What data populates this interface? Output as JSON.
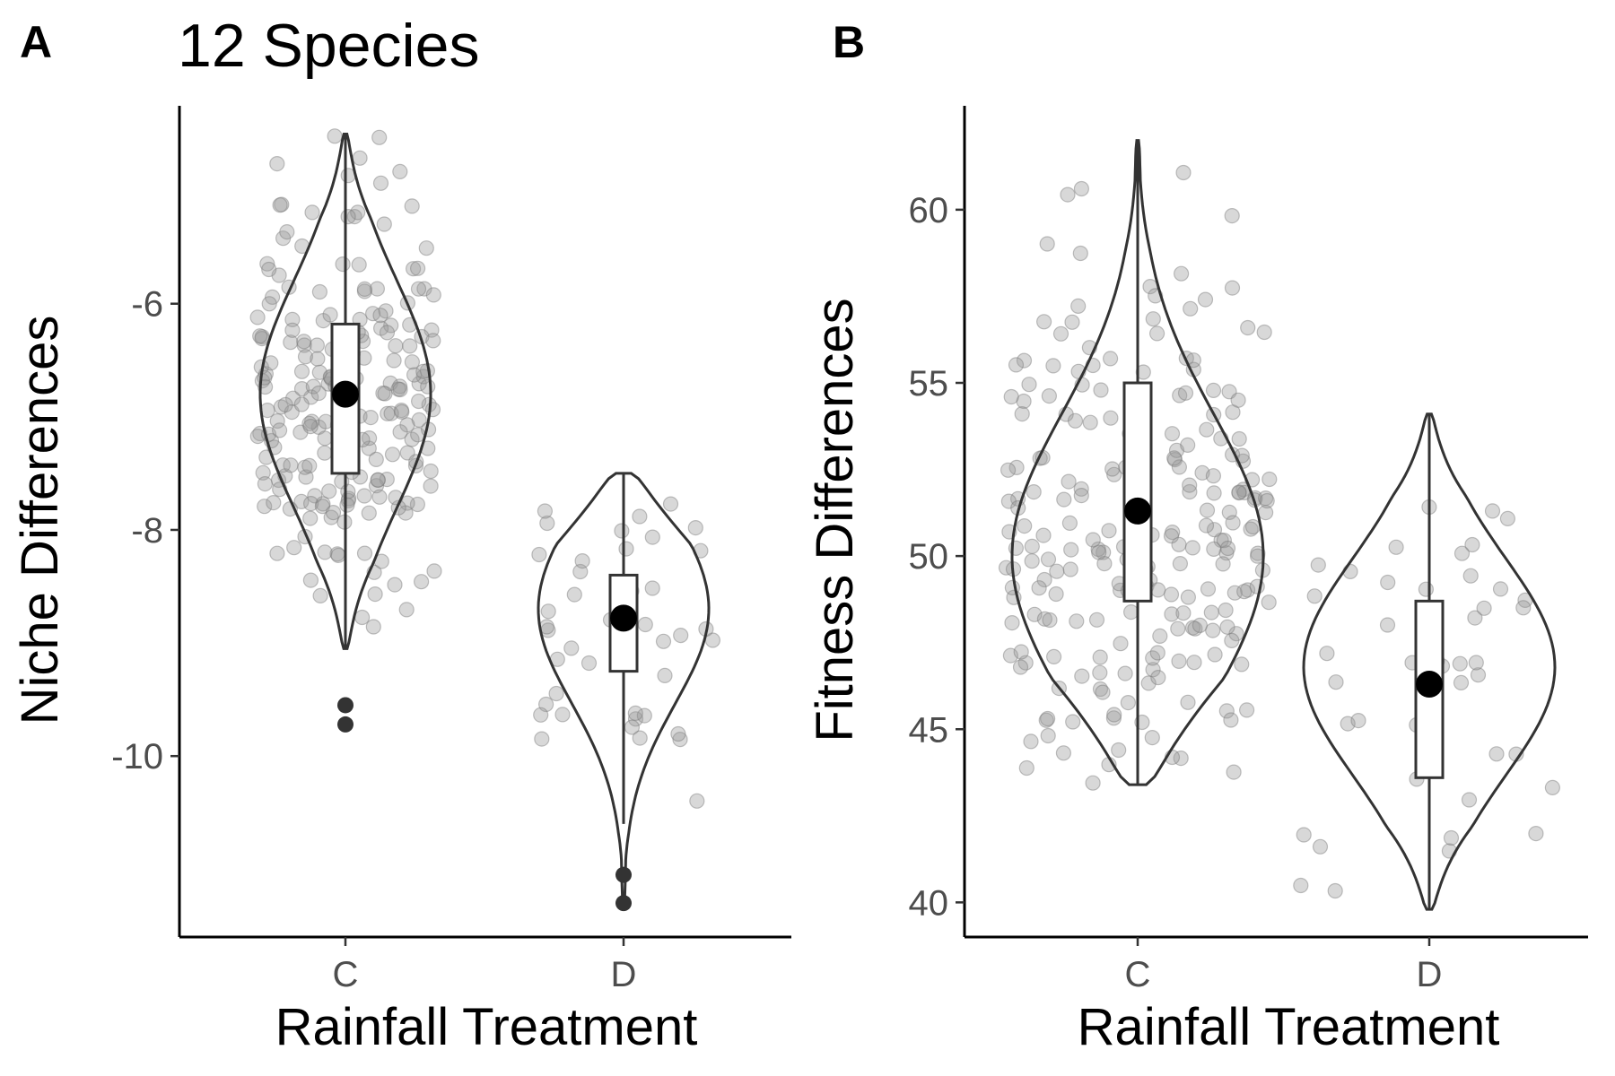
{
  "figure": {
    "panels": [
      {
        "label": "A"
      },
      {
        "label": "B"
      }
    ]
  },
  "chart_data": [
    {
      "type": "violin",
      "panel_label": "A",
      "title": "12 Species",
      "xlabel": "Rainfall Treatment",
      "ylabel": "Niche Differences",
      "categories": [
        "C",
        "D"
      ],
      "ylim": [
        -11.6,
        -4.25
      ],
      "yticks": [
        -10,
        -8,
        -6
      ],
      "ytick_labels": [
        "-10",
        "-8",
        "-6"
      ],
      "grid": false,
      "groups": [
        {
          "category": "C",
          "violin_range": [
            -9.05,
            -4.5
          ],
          "box": {
            "q1": -7.5,
            "median": -6.9,
            "q3": -6.18,
            "whisker_low": -9.05,
            "whisker_high": -4.5
          },
          "mean": -6.8,
          "outliers": [
            -9.55,
            -9.72
          ],
          "peak_density_y": -6.8,
          "seed": 11,
          "n": 220
        },
        {
          "category": "D",
          "violin_range": [
            -11.3,
            -7.5
          ],
          "box": {
            "q1": -9.25,
            "median": -8.8,
            "q3": -8.4,
            "whisker_low": -10.6,
            "whisker_high": -7.5
          },
          "mean": -8.78,
          "outliers": [
            -11.05,
            -11.3
          ],
          "peak_density_y": -8.7,
          "seed": 23,
          "n": 42
        }
      ]
    },
    {
      "type": "violin",
      "panel_label": "B",
      "title": "",
      "xlabel": "Rainfall Treatment",
      "ylabel": "Fitness Differences",
      "categories": [
        "C",
        "D"
      ],
      "ylim": [
        39,
        63
      ],
      "yticks": [
        40,
        45,
        50,
        55,
        60
      ],
      "ytick_labels": [
        "40",
        "45",
        "50",
        "55",
        "60"
      ],
      "grid": false,
      "groups": [
        {
          "category": "C",
          "violin_range": [
            43.4,
            62.0
          ],
          "box": {
            "q1": 48.7,
            "median": 51.3,
            "q3": 55.0,
            "whisker_low": 43.4,
            "whisker_high": 62.0
          },
          "mean": 51.3,
          "outliers": [],
          "peak_density_y": 50.0,
          "seed": 37,
          "n": 230
        },
        {
          "category": "D",
          "violin_range": [
            39.8,
            54.1
          ],
          "box": {
            "q1": 43.6,
            "median": 46.3,
            "q3": 48.7,
            "whisker_low": 39.8,
            "whisker_high": 54.1
          },
          "mean": 46.3,
          "outliers": [],
          "peak_density_y": 46.8,
          "seed": 51,
          "n": 44
        }
      ]
    }
  ]
}
